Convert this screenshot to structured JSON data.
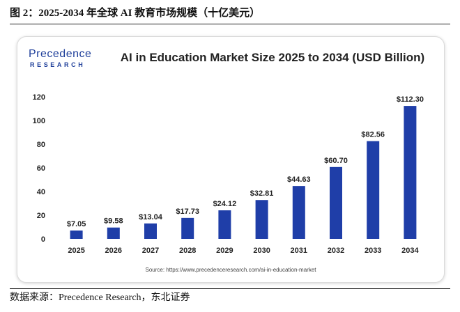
{
  "figure": {
    "title": "图 2：2025-2034 年全球 AI 教育市场规模（十亿美元）",
    "source_note": "数据来源：Precedence Research，东北证券"
  },
  "logo": {
    "main": "Precedence",
    "sub": "RESEARCH"
  },
  "colors": {
    "bar": "#1f3ea8",
    "axis_text": "#222222",
    "grid": "#e6e6e6"
  },
  "chart_data": {
    "type": "bar",
    "title": "AI in Education Market Size 2025 to 2034 (USD Billion)",
    "xlabel": "",
    "ylabel": "",
    "categories": [
      "2025",
      "2026",
      "2027",
      "2028",
      "2029",
      "2030",
      "2031",
      "2032",
      "2033",
      "2034"
    ],
    "values": [
      7.05,
      9.58,
      13.04,
      17.73,
      24.12,
      32.81,
      44.63,
      60.7,
      82.56,
      112.3
    ],
    "data_labels": [
      "$7.05",
      "$9.58",
      "$13.04",
      "$17.73",
      "$24.12",
      "$32.81",
      "$44.63",
      "$60.70",
      "$82.56",
      "$112.30"
    ],
    "yticks": [
      "0",
      "20",
      "40",
      "60",
      "80",
      "100",
      "120"
    ],
    "ylim": [
      0,
      120
    ],
    "grid": false,
    "legend": "none",
    "source": "Source: https://www.precedenceresearch.com/ai-in-education-market"
  }
}
